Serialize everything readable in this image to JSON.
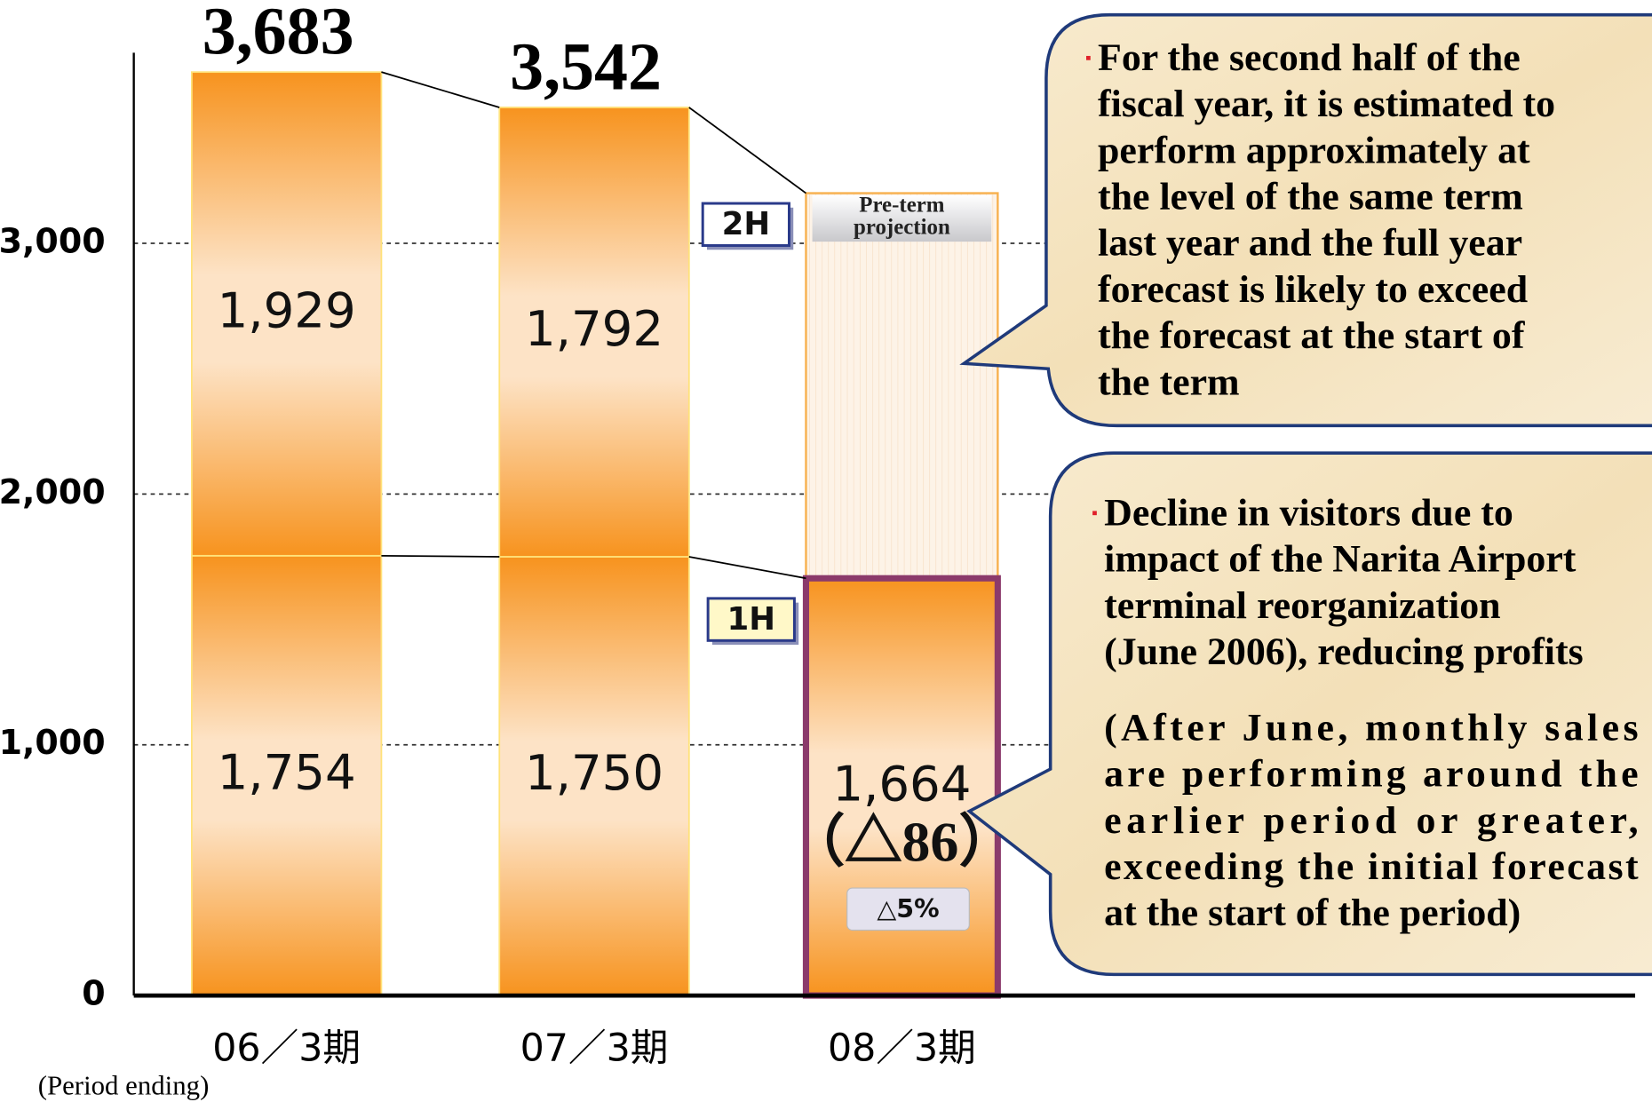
{
  "chart_data": {
    "type": "bar",
    "stacked": true,
    "categories": [
      "06／3期",
      "07／3期",
      "08／3期"
    ],
    "x_label": "(Period ending)",
    "ylim": [
      0,
      3760
    ],
    "yticks": [
      0,
      {
        "value": 1000,
        "label": "1,000"
      },
      {
        "value": 2000,
        "label": "2,000"
      },
      {
        "value": 3000,
        "label": "3,000"
      }
    ],
    "grid": true,
    "series": [
      {
        "name": "1H",
        "color": "#f7931e",
        "values": [
          1754,
          1750,
          1664
        ],
        "value_labels": [
          "1,754",
          "1,750",
          "1,664"
        ]
      },
      {
        "name": "2H",
        "color": "#f7931e",
        "values": [
          1929,
          1792,
          null
        ],
        "value_labels": [
          "1,929",
          "1,792",
          null
        ]
      }
    ],
    "totals": [
      3683,
      3542,
      null
    ],
    "total_labels": [
      "3,683",
      "3,542",
      null
    ],
    "projection": {
      "lines": [
        "Pre-term",
        "projection"
      ],
      "values": [
        null,
        null,
        3200
      ],
      "color": "#fdf1e2",
      "highlight_color": "#8b3a6b"
    },
    "annotations": {
      "change": "（△86）",
      "change_pct": "△5%"
    },
    "callouts": [
      {
        "paragraphs": [
          [
            "For the second half of the",
            "fiscal year, it is estimated to",
            "perform approximately at",
            "the level of the same term",
            "last year and the full year",
            "forecast is likely to exceed",
            "the forecast at the start of",
            "the term"
          ]
        ]
      },
      {
        "paragraphs": [
          [
            "Decline in visitors due to",
            "impact of the Narita Airport",
            "terminal reorganization",
            "(June 2006), reducing profits"
          ],
          [
            "(After June, monthly sales",
            "are performing around the",
            "earlier period or greater,",
            "exceeding the initial forecast",
            "at the start of the period)"
          ]
        ]
      }
    ]
  }
}
